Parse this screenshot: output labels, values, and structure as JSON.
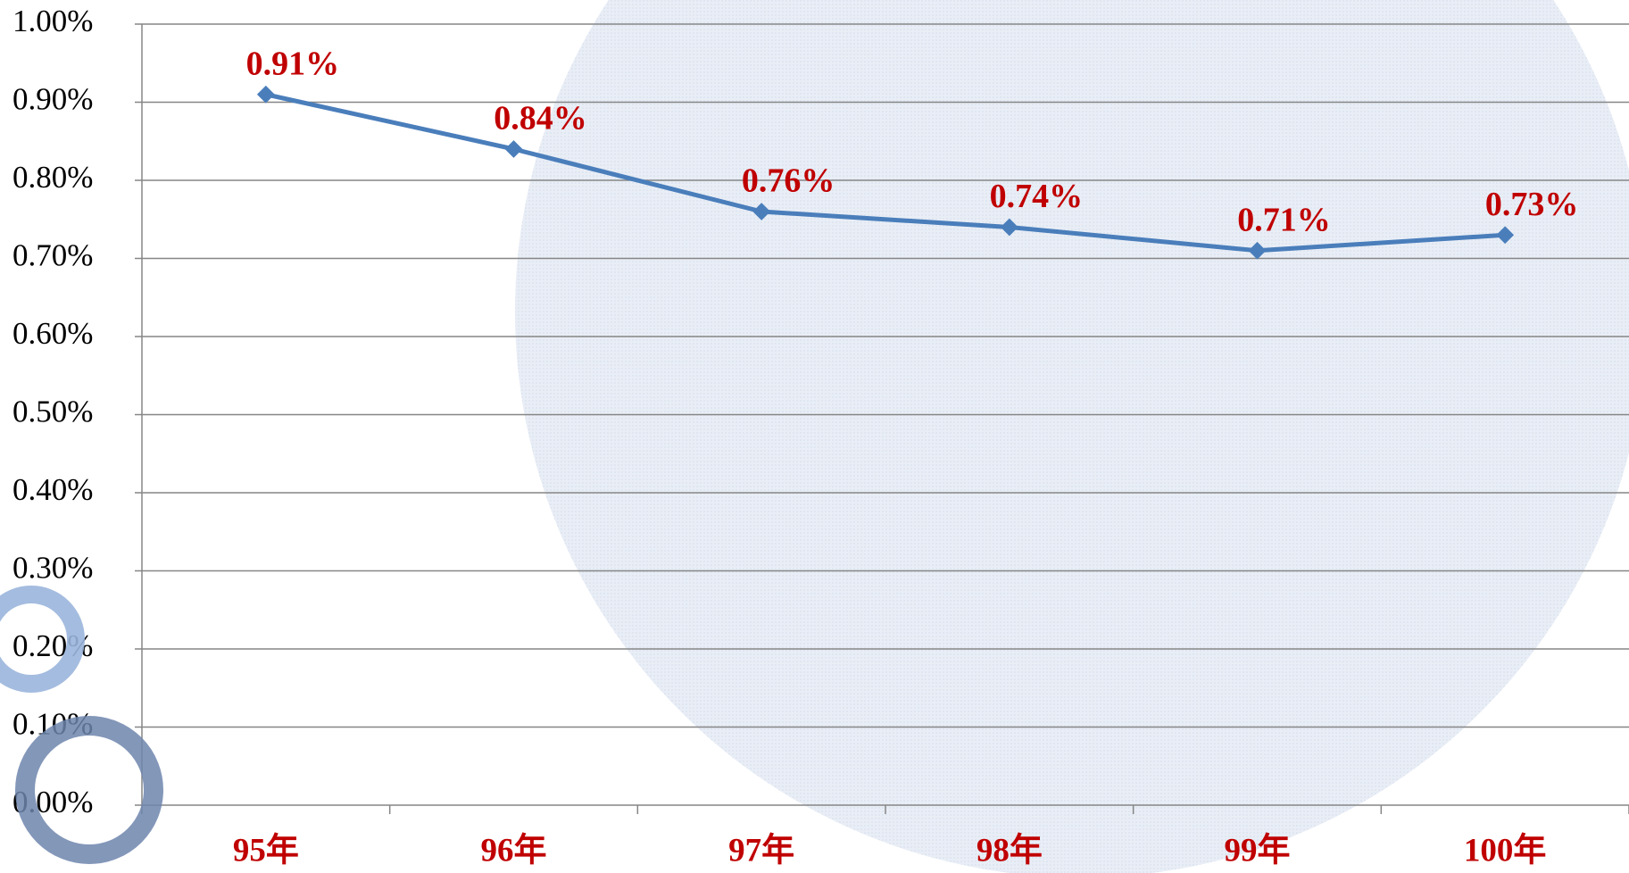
{
  "chart_data": {
    "type": "line",
    "categories": [
      "95年",
      "96年",
      "97年",
      "98年",
      "99年",
      "100年"
    ],
    "series": [
      {
        "color": "#4a7ebb",
        "values": [
          0.91,
          0.84,
          0.76,
          0.74,
          0.71,
          0.73
        ],
        "value_labels": [
          "0.91%",
          "0.84%",
          "0.76%",
          "0.74%",
          "0.71%",
          "0.73%"
        ]
      }
    ],
    "ylim": [
      0,
      1
    ],
    "yticks": [
      {
        "value": 0,
        "label": "0.00%"
      },
      {
        "value": 0.1,
        "label": "0.10%"
      },
      {
        "value": 0.2,
        "label": "0.20%"
      },
      {
        "value": 0.3,
        "label": "0.30%"
      },
      {
        "value": 0.4,
        "label": "0.40%"
      },
      {
        "value": 0.5,
        "label": "0.50%"
      },
      {
        "value": 0.6,
        "label": "0.60%"
      },
      {
        "value": 0.7,
        "label": "0.70%"
      },
      {
        "value": 0.8,
        "label": "0.80%"
      },
      {
        "value": 0.9,
        "label": "0.90%"
      },
      {
        "value": 1,
        "label": "1.00%"
      }
    ],
    "grid": true
  }
}
